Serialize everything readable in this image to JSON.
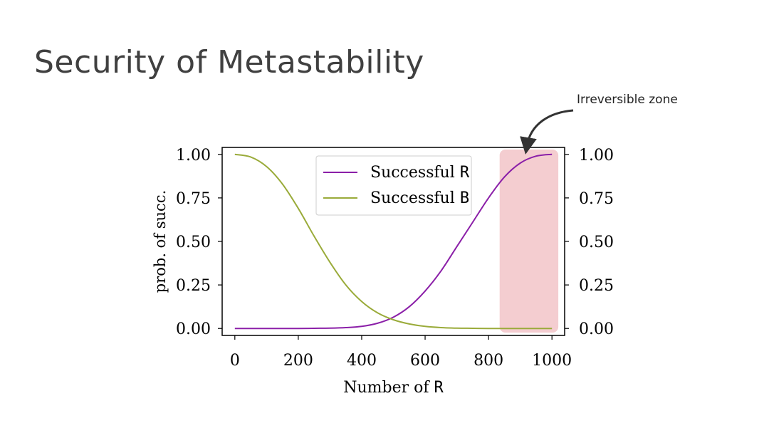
{
  "slide": {
    "title": "Security of Metastability",
    "annotation": "Irreversible zone"
  },
  "colors": {
    "series_r": "#8b1fa8",
    "series_b": "#9aab3a",
    "zone_fill": "#f2c4c8",
    "axis": "#000000"
  },
  "chart_data": {
    "type": "line",
    "xlabel_text": "Number of",
    "xlabel_symbol": "R",
    "ylabel": "prob. of succ.",
    "xlim": [
      -40,
      1040
    ],
    "ylim": [
      -0.04,
      1.04
    ],
    "xticks": [
      0,
      200,
      400,
      600,
      800,
      1000
    ],
    "xtick_labels": [
      "0",
      "200",
      "400",
      "600",
      "800",
      "1000"
    ],
    "yticks": [
      0.0,
      0.25,
      0.5,
      0.75,
      1.0
    ],
    "ytick_labels": [
      "0.00",
      "0.25",
      "0.50",
      "0.75",
      "1.00"
    ],
    "right_ytick_labels": [
      "0.00",
      "0.25",
      "0.50",
      "0.75",
      "1.00"
    ],
    "legend_position": "top-center",
    "grid": false,
    "x": [
      0,
      50,
      100,
      150,
      200,
      250,
      300,
      350,
      400,
      450,
      500,
      550,
      600,
      650,
      700,
      750,
      800,
      850,
      900,
      950,
      1000
    ],
    "series": [
      {
        "name": "Successful R",
        "label_text": "Successful",
        "label_symbol": "R",
        "values": [
          0.0,
          0.0,
          0.0,
          0.0,
          0.0,
          0.001,
          0.002,
          0.005,
          0.012,
          0.03,
          0.065,
          0.125,
          0.215,
          0.33,
          0.47,
          0.61,
          0.75,
          0.87,
          0.95,
          0.99,
          1.0
        ]
      },
      {
        "name": "Successful B",
        "label_text": "Successful",
        "label_symbol": "B",
        "values": [
          1.0,
          0.985,
          0.93,
          0.83,
          0.69,
          0.53,
          0.38,
          0.25,
          0.155,
          0.09,
          0.05,
          0.026,
          0.012,
          0.005,
          0.002,
          0.001,
          0.0,
          0.0,
          0.0,
          0.0,
          0.0
        ]
      }
    ],
    "highlight_zone": {
      "x_range": [
        835,
        1020
      ],
      "label": "Irreversible zone"
    }
  }
}
